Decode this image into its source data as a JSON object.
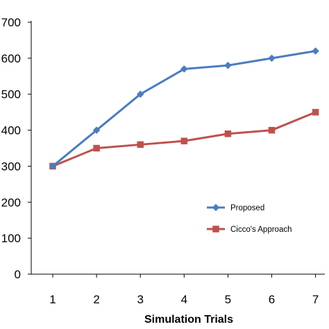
{
  "chart_data": {
    "type": "line",
    "x": [
      1,
      2,
      3,
      4,
      5,
      6,
      7
    ],
    "xticks": [
      "1",
      "2",
      "3",
      "4",
      "5",
      "6",
      "7"
    ],
    "yticks": [
      "0",
      "100",
      "200",
      "300",
      "400",
      "500",
      "600",
      "700"
    ],
    "ylim": [
      0,
      700
    ],
    "xlabel": "Simulation Trials",
    "ylabel": "",
    "title": "",
    "grid": false,
    "legend_position": "right",
    "series": [
      {
        "name": "Proposed",
        "values": [
          300,
          400,
          500,
          570,
          580,
          600,
          620
        ],
        "color": "#4a7cc1",
        "marker": "diamond"
      },
      {
        "name": "Cicco's Approach",
        "values": [
          300,
          350,
          360,
          370,
          390,
          400,
          450
        ],
        "color": "#c0504d",
        "marker": "square"
      }
    ]
  }
}
